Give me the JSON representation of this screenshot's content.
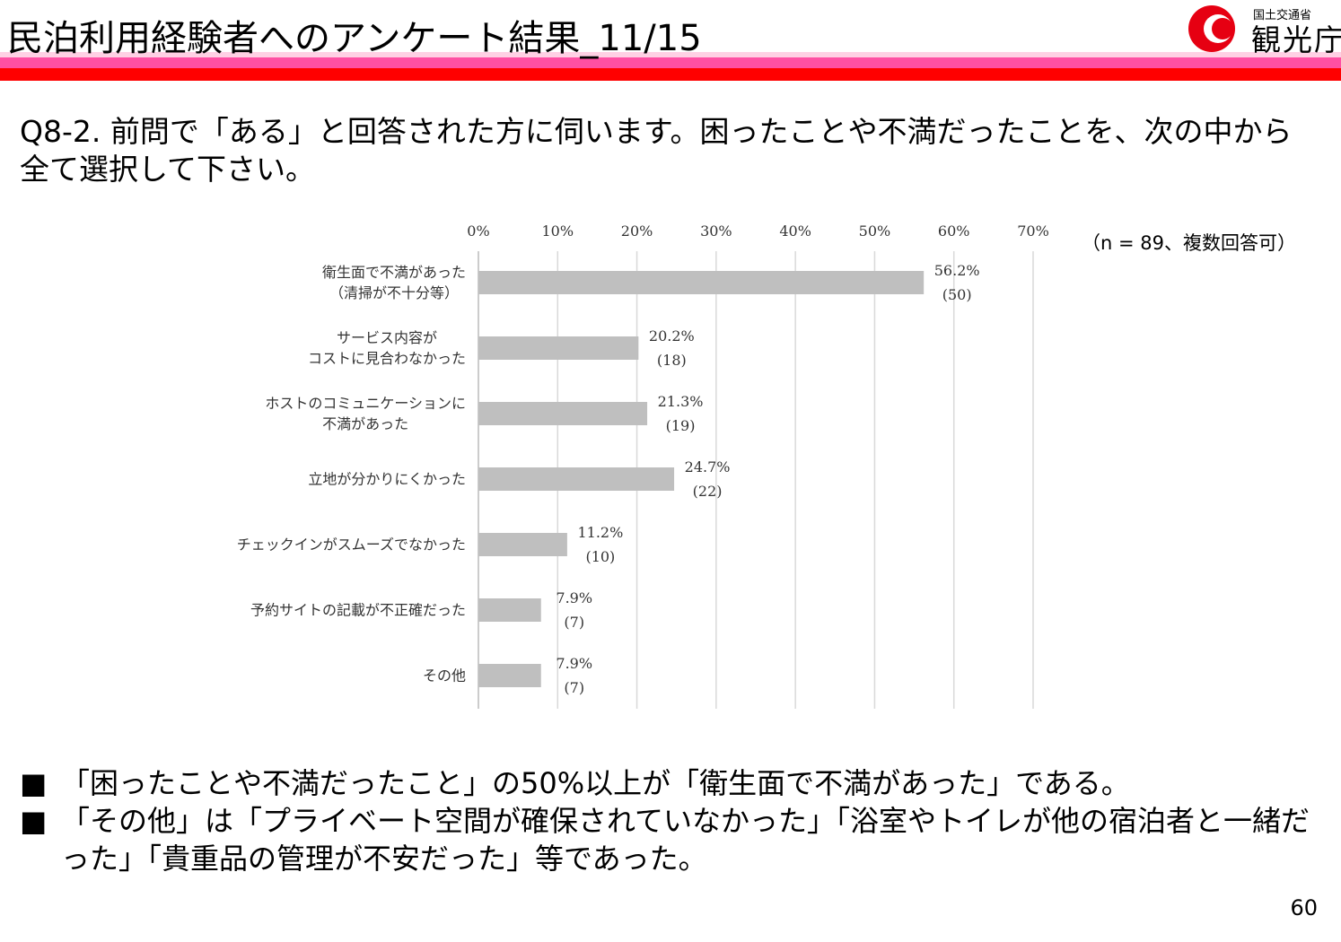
{
  "header": {
    "title": "民泊利用経験者へのアンケート結果_11/15",
    "logo_ministry": "国土交通省",
    "logo_agency": "観光庁"
  },
  "question": "Q8-2. 前問で「ある」と回答された方に伺います。困ったことや不満だったことを、次の中から全て選択して下さい。",
  "chart_data": {
    "type": "hbar",
    "note": "（n = 89、複数回答可）",
    "categories": [
      "衛生面で不満があった\n（清掃が不十分等）",
      "サービス内容が\nコストに見合わなかった",
      "ホストのコミュニケーションに\n不満があった",
      "立地が分かりにくかった",
      "チェックインがスムーズでなかった",
      "予約サイトの記載が不正確だった",
      "その他"
    ],
    "values": [
      56.2,
      20.2,
      21.3,
      24.7,
      11.2,
      7.9,
      7.9
    ],
    "value_labels": [
      "56.2%",
      "20.2%",
      "21.3%",
      "24.7%",
      "11.2%",
      "7.9%",
      "7.9%"
    ],
    "count_labels": [
      "(50)",
      "(18)",
      "(19)",
      "(22)",
      "(10)",
      "(7)",
      "(7)"
    ],
    "color": "#bfbfbf",
    "xlim": [
      0,
      70
    ],
    "xticks": [
      {
        "value": 0,
        "label": "0%"
      },
      {
        "value": 10,
        "label": "10%"
      },
      {
        "value": 20,
        "label": "20%"
      },
      {
        "value": 30,
        "label": "30%"
      },
      {
        "value": 40,
        "label": "40%"
      },
      {
        "value": 50,
        "label": "50%"
      },
      {
        "value": 60,
        "label": "60%"
      },
      {
        "value": 70,
        "label": "70%"
      }
    ],
    "grid": true
  },
  "bullets": [
    "「困ったことや不満だったこと」の50%以上が「衛生面で不満があった」である。",
    "「その他」は「プライベート空間が確保されていなかった」「浴室やトイレが他の宿泊者と一緒だった」「貴重品の管理が不安だった」等であった。"
  ],
  "page_number": "60"
}
